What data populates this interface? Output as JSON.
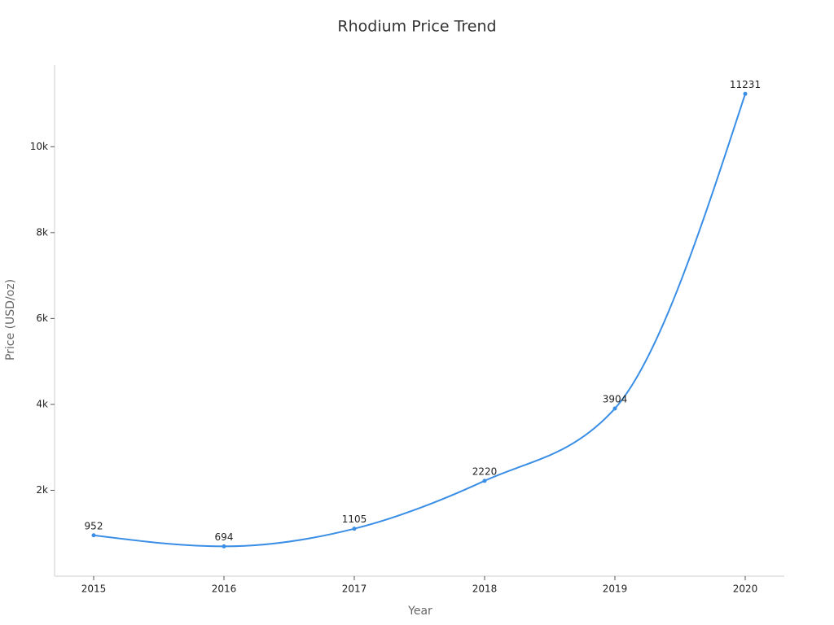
{
  "chart_data": {
    "type": "line",
    "title": "Rhodium Price Trend",
    "x_label": "Year",
    "y_label": "Price (USD/oz)",
    "x": [
      2015,
      2016,
      2017,
      2018,
      2019,
      2020
    ],
    "values": [
      952,
      694,
      1105,
      2220,
      3904,
      11231
    ],
    "color": "#3a8ee6",
    "xlim": [
      2014.7,
      2020.3
    ],
    "xticks": [
      2015,
      2016,
      2017,
      2018,
      2019,
      2020
    ],
    "ylim": [
      0,
      11900
    ],
    "yticks": [
      {
        "value": 2000,
        "label": "2k"
      },
      {
        "value": 4000,
        "label": "4k"
      },
      {
        "value": 6000,
        "label": "6k"
      },
      {
        "value": 8000,
        "label": "8k"
      },
      {
        "value": 10000,
        "label": "10k"
      }
    ],
    "grid": false
  }
}
